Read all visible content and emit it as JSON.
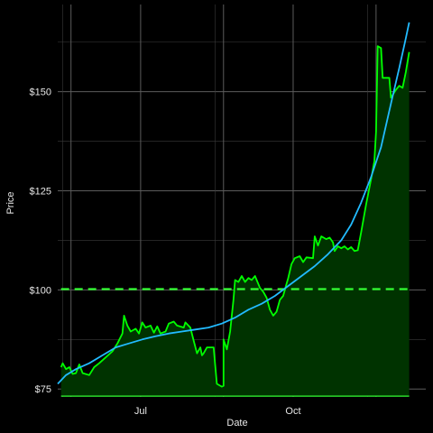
{
  "chart_data": {
    "type": "line",
    "title": "",
    "xlabel": "Date",
    "ylabel": "Price",
    "x_ticks": [
      "Jul",
      "Oct"
    ],
    "y_ticks": [
      "$75",
      "$100",
      "$125",
      "$150"
    ],
    "y_tick_values": [
      75,
      100,
      125,
      150
    ],
    "xlim": [
      "2023-05-12",
      "2023-12-20"
    ],
    "ylim": [
      73,
      172
    ],
    "grid": true,
    "legend": "none",
    "reference_line": {
      "value": 100.2,
      "style": "dashed",
      "color": "#33ff33"
    },
    "baseline": {
      "value": 73.2,
      "color": "#33ff33"
    },
    "area_fill": "#003300",
    "series": [
      {
        "color": "#00ff00",
        "points": [
          [
            "2023-05-14",
            80.5
          ],
          [
            "2023-05-15",
            81.5
          ],
          [
            "2023-05-17",
            80.0
          ],
          [
            "2023-05-19",
            80.5
          ],
          [
            "2023-05-21",
            78.8
          ],
          [
            "2023-05-23",
            79.0
          ],
          [
            "2023-05-25",
            81.2
          ],
          [
            "2023-05-27",
            79.0
          ],
          [
            "2023-05-31",
            78.5
          ],
          [
            "2023-06-03",
            80.5
          ],
          [
            "2023-06-06",
            81.5
          ],
          [
            "2023-06-10",
            83.0
          ],
          [
            "2023-06-14",
            84.5
          ],
          [
            "2023-06-17",
            86.5
          ],
          [
            "2023-06-20",
            89.0
          ],
          [
            "2023-06-21",
            93.5
          ],
          [
            "2023-06-23",
            91.0
          ],
          [
            "2023-06-25",
            89.5
          ],
          [
            "2023-06-28",
            90.2
          ],
          [
            "2023-06-30",
            89.0
          ],
          [
            "2023-07-02",
            91.8
          ],
          [
            "2023-07-04",
            90.5
          ],
          [
            "2023-07-07",
            91.0
          ],
          [
            "2023-07-09",
            89.2
          ],
          [
            "2023-07-11",
            90.8
          ],
          [
            "2023-07-13",
            89.0
          ],
          [
            "2023-07-16",
            89.5
          ],
          [
            "2023-07-18",
            91.5
          ],
          [
            "2023-07-21",
            92.0
          ],
          [
            "2023-07-23",
            91.0
          ],
          [
            "2023-07-27",
            90.5
          ],
          [
            "2023-07-28",
            91.8
          ],
          [
            "2023-07-31",
            90.5
          ],
          [
            "2023-08-02",
            87.2
          ],
          [
            "2023-08-04",
            84.0
          ],
          [
            "2023-08-06",
            85.5
          ],
          [
            "2023-08-07",
            83.5
          ],
          [
            "2023-08-08",
            84.0
          ],
          [
            "2023-08-10",
            85.5
          ],
          [
            "2023-08-14",
            85.5
          ],
          [
            "2023-08-16",
            76.3
          ],
          [
            "2023-08-19",
            75.6
          ],
          [
            "2023-08-20",
            75.8
          ],
          [
            "2023-08-20",
            87.5
          ],
          [
            "2023-08-22",
            85.0
          ],
          [
            "2023-08-24",
            89.5
          ],
          [
            "2023-08-26",
            97.5
          ],
          [
            "2023-08-27",
            102.5
          ],
          [
            "2023-08-29",
            102.0
          ],
          [
            "2023-08-31",
            103.5
          ],
          [
            "2023-09-02",
            102.0
          ],
          [
            "2023-09-04",
            103.0
          ],
          [
            "2023-09-06",
            102.5
          ],
          [
            "2023-09-08",
            103.5
          ],
          [
            "2023-09-11",
            100.5
          ],
          [
            "2023-09-13",
            99.5
          ],
          [
            "2023-09-15",
            98.0
          ],
          [
            "2023-09-17",
            95.0
          ],
          [
            "2023-09-19",
            93.5
          ],
          [
            "2023-09-21",
            94.5
          ],
          [
            "2023-09-23",
            97.5
          ],
          [
            "2023-09-25",
            98.5
          ],
          [
            "2023-09-27",
            101.5
          ],
          [
            "2023-09-28",
            103.0
          ],
          [
            "2023-09-30",
            106.5
          ],
          [
            "2023-10-02",
            108.0
          ],
          [
            "2023-10-05",
            108.5
          ],
          [
            "2023-10-07",
            107.0
          ],
          [
            "2023-10-09",
            108.2
          ],
          [
            "2023-10-13",
            108.0
          ],
          [
            "2023-10-14",
            113.5
          ],
          [
            "2023-10-16",
            111.2
          ],
          [
            "2023-10-18",
            113.5
          ],
          [
            "2023-10-21",
            112.8
          ],
          [
            "2023-10-23",
            113.2
          ],
          [
            "2023-10-25",
            112.0
          ],
          [
            "2023-10-26",
            109.8
          ],
          [
            "2023-10-28",
            111.0
          ],
          [
            "2023-10-30",
            110.5
          ],
          [
            "2023-11-01",
            111.0
          ],
          [
            "2023-11-03",
            110.2
          ],
          [
            "2023-11-05",
            110.8
          ],
          [
            "2023-11-07",
            109.8
          ],
          [
            "2023-11-09",
            110.0
          ],
          [
            "2023-11-11",
            114.5
          ],
          [
            "2023-11-14",
            121.5
          ],
          [
            "2023-11-17",
            128.0
          ],
          [
            "2023-11-19",
            132.5
          ],
          [
            "2023-11-20",
            140.0
          ],
          [
            "2023-11-21",
            161.5
          ],
          [
            "2023-11-23",
            161.0
          ],
          [
            "2023-11-24",
            153.5
          ],
          [
            "2023-11-28",
            153.5
          ],
          [
            "2023-11-29",
            148.5
          ],
          [
            "2023-12-02",
            150.5
          ],
          [
            "2023-12-04",
            151.5
          ],
          [
            "2023-12-06",
            151.0
          ],
          [
            "2023-12-08",
            155.0
          ],
          [
            "2023-12-10",
            160.0
          ]
        ]
      },
      {
        "color": "#22bbff",
        "points": [
          [
            "2023-05-12",
            76.3
          ],
          [
            "2023-05-17",
            78.5
          ],
          [
            "2023-05-23",
            80.0
          ],
          [
            "2023-05-31",
            81.5
          ],
          [
            "2023-06-08",
            83.5
          ],
          [
            "2023-06-16",
            85.5
          ],
          [
            "2023-06-24",
            86.5
          ],
          [
            "2023-07-02",
            87.5
          ],
          [
            "2023-07-10",
            88.3
          ],
          [
            "2023-07-18",
            89.0
          ],
          [
            "2023-07-26",
            89.5
          ],
          [
            "2023-08-03",
            90.0
          ],
          [
            "2023-08-11",
            90.5
          ],
          [
            "2023-08-19",
            91.5
          ],
          [
            "2023-08-27",
            93.0
          ],
          [
            "2023-09-04",
            95.0
          ],
          [
            "2023-09-12",
            96.5
          ],
          [
            "2023-09-20",
            98.5
          ],
          [
            "2023-09-28",
            101.0
          ],
          [
            "2023-10-06",
            103.5
          ],
          [
            "2023-10-14",
            106.0
          ],
          [
            "2023-10-22",
            109.0
          ],
          [
            "2023-10-30",
            112.5
          ],
          [
            "2023-11-05",
            116.5
          ],
          [
            "2023-11-11",
            122.0
          ],
          [
            "2023-11-17",
            128.5
          ],
          [
            "2023-11-23",
            136.0
          ],
          [
            "2023-11-29",
            147.0
          ],
          [
            "2023-12-04",
            156.0
          ],
          [
            "2023-12-08",
            163.5
          ],
          [
            "2023-12-10",
            167.5
          ]
        ]
      }
    ]
  }
}
